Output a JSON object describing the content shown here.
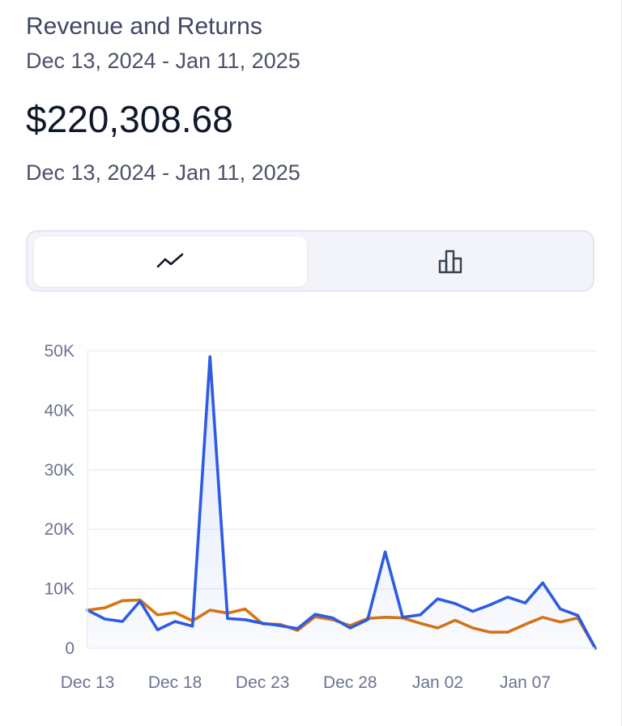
{
  "header": {
    "title": "Revenue and Returns",
    "subtitle": "Dec 13, 2024 - Jan 11, 2025",
    "total": "$220,308.68",
    "range": "Dec 13, 2024 - Jan 11, 2025"
  },
  "toggle": {
    "options": [
      {
        "icon": "line-chart-icon",
        "selected": true
      },
      {
        "icon": "bar-chart-icon",
        "selected": false
      }
    ]
  },
  "colors": {
    "series_blue": "#2d5be3",
    "series_orange": "#d9740f",
    "gridline": "#eceef4",
    "tick_text": "#6b7391"
  },
  "chart_data": {
    "type": "line",
    "categories": [
      "Dec 13",
      "Dec 14",
      "Dec 15",
      "Dec 16",
      "Dec 17",
      "Dec 18",
      "Dec 19",
      "Dec 20",
      "Dec 21",
      "Dec 22",
      "Dec 23",
      "Dec 24",
      "Dec 25",
      "Dec 26",
      "Dec 27",
      "Dec 28",
      "Dec 29",
      "Dec 30",
      "Dec 31",
      "Jan 01",
      "Jan 02",
      "Jan 03",
      "Jan 04",
      "Jan 05",
      "Jan 06",
      "Jan 07",
      "Jan 08",
      "Jan 09",
      "Jan 10",
      "Jan 11"
    ],
    "x_tick_labels": [
      "Dec 13",
      "Dec 18",
      "Dec 23",
      "Dec 28",
      "Jan 02",
      "Jan 07"
    ],
    "y_tick_labels": [
      "0",
      "10K",
      "20K",
      "30K",
      "40K",
      "50K"
    ],
    "ylim": [
      0,
      50000
    ],
    "series": [
      {
        "color": "#2d5be3",
        "fill": true,
        "values": [
          6400,
          4900,
          4500,
          7900,
          3100,
          4500,
          3700,
          49000,
          5000,
          4800,
          4200,
          3800,
          3300,
          5700,
          5100,
          3400,
          4800,
          16200,
          5200,
          5600,
          8300,
          7500,
          6200,
          7300,
          8600,
          7600,
          11000,
          6600,
          5500,
          0
        ]
      },
      {
        "color": "#d9740f",
        "fill": false,
        "values": [
          6400,
          6800,
          8000,
          8100,
          5600,
          6000,
          4600,
          6400,
          5900,
          6600,
          4100,
          4000,
          3000,
          5300,
          4800,
          3800,
          5000,
          5200,
          5100,
          4200,
          3400,
          4700,
          3400,
          2700,
          2700,
          4000,
          5200,
          4400,
          5100,
          0
        ]
      }
    ],
    "grid": true,
    "legend": "none"
  }
}
